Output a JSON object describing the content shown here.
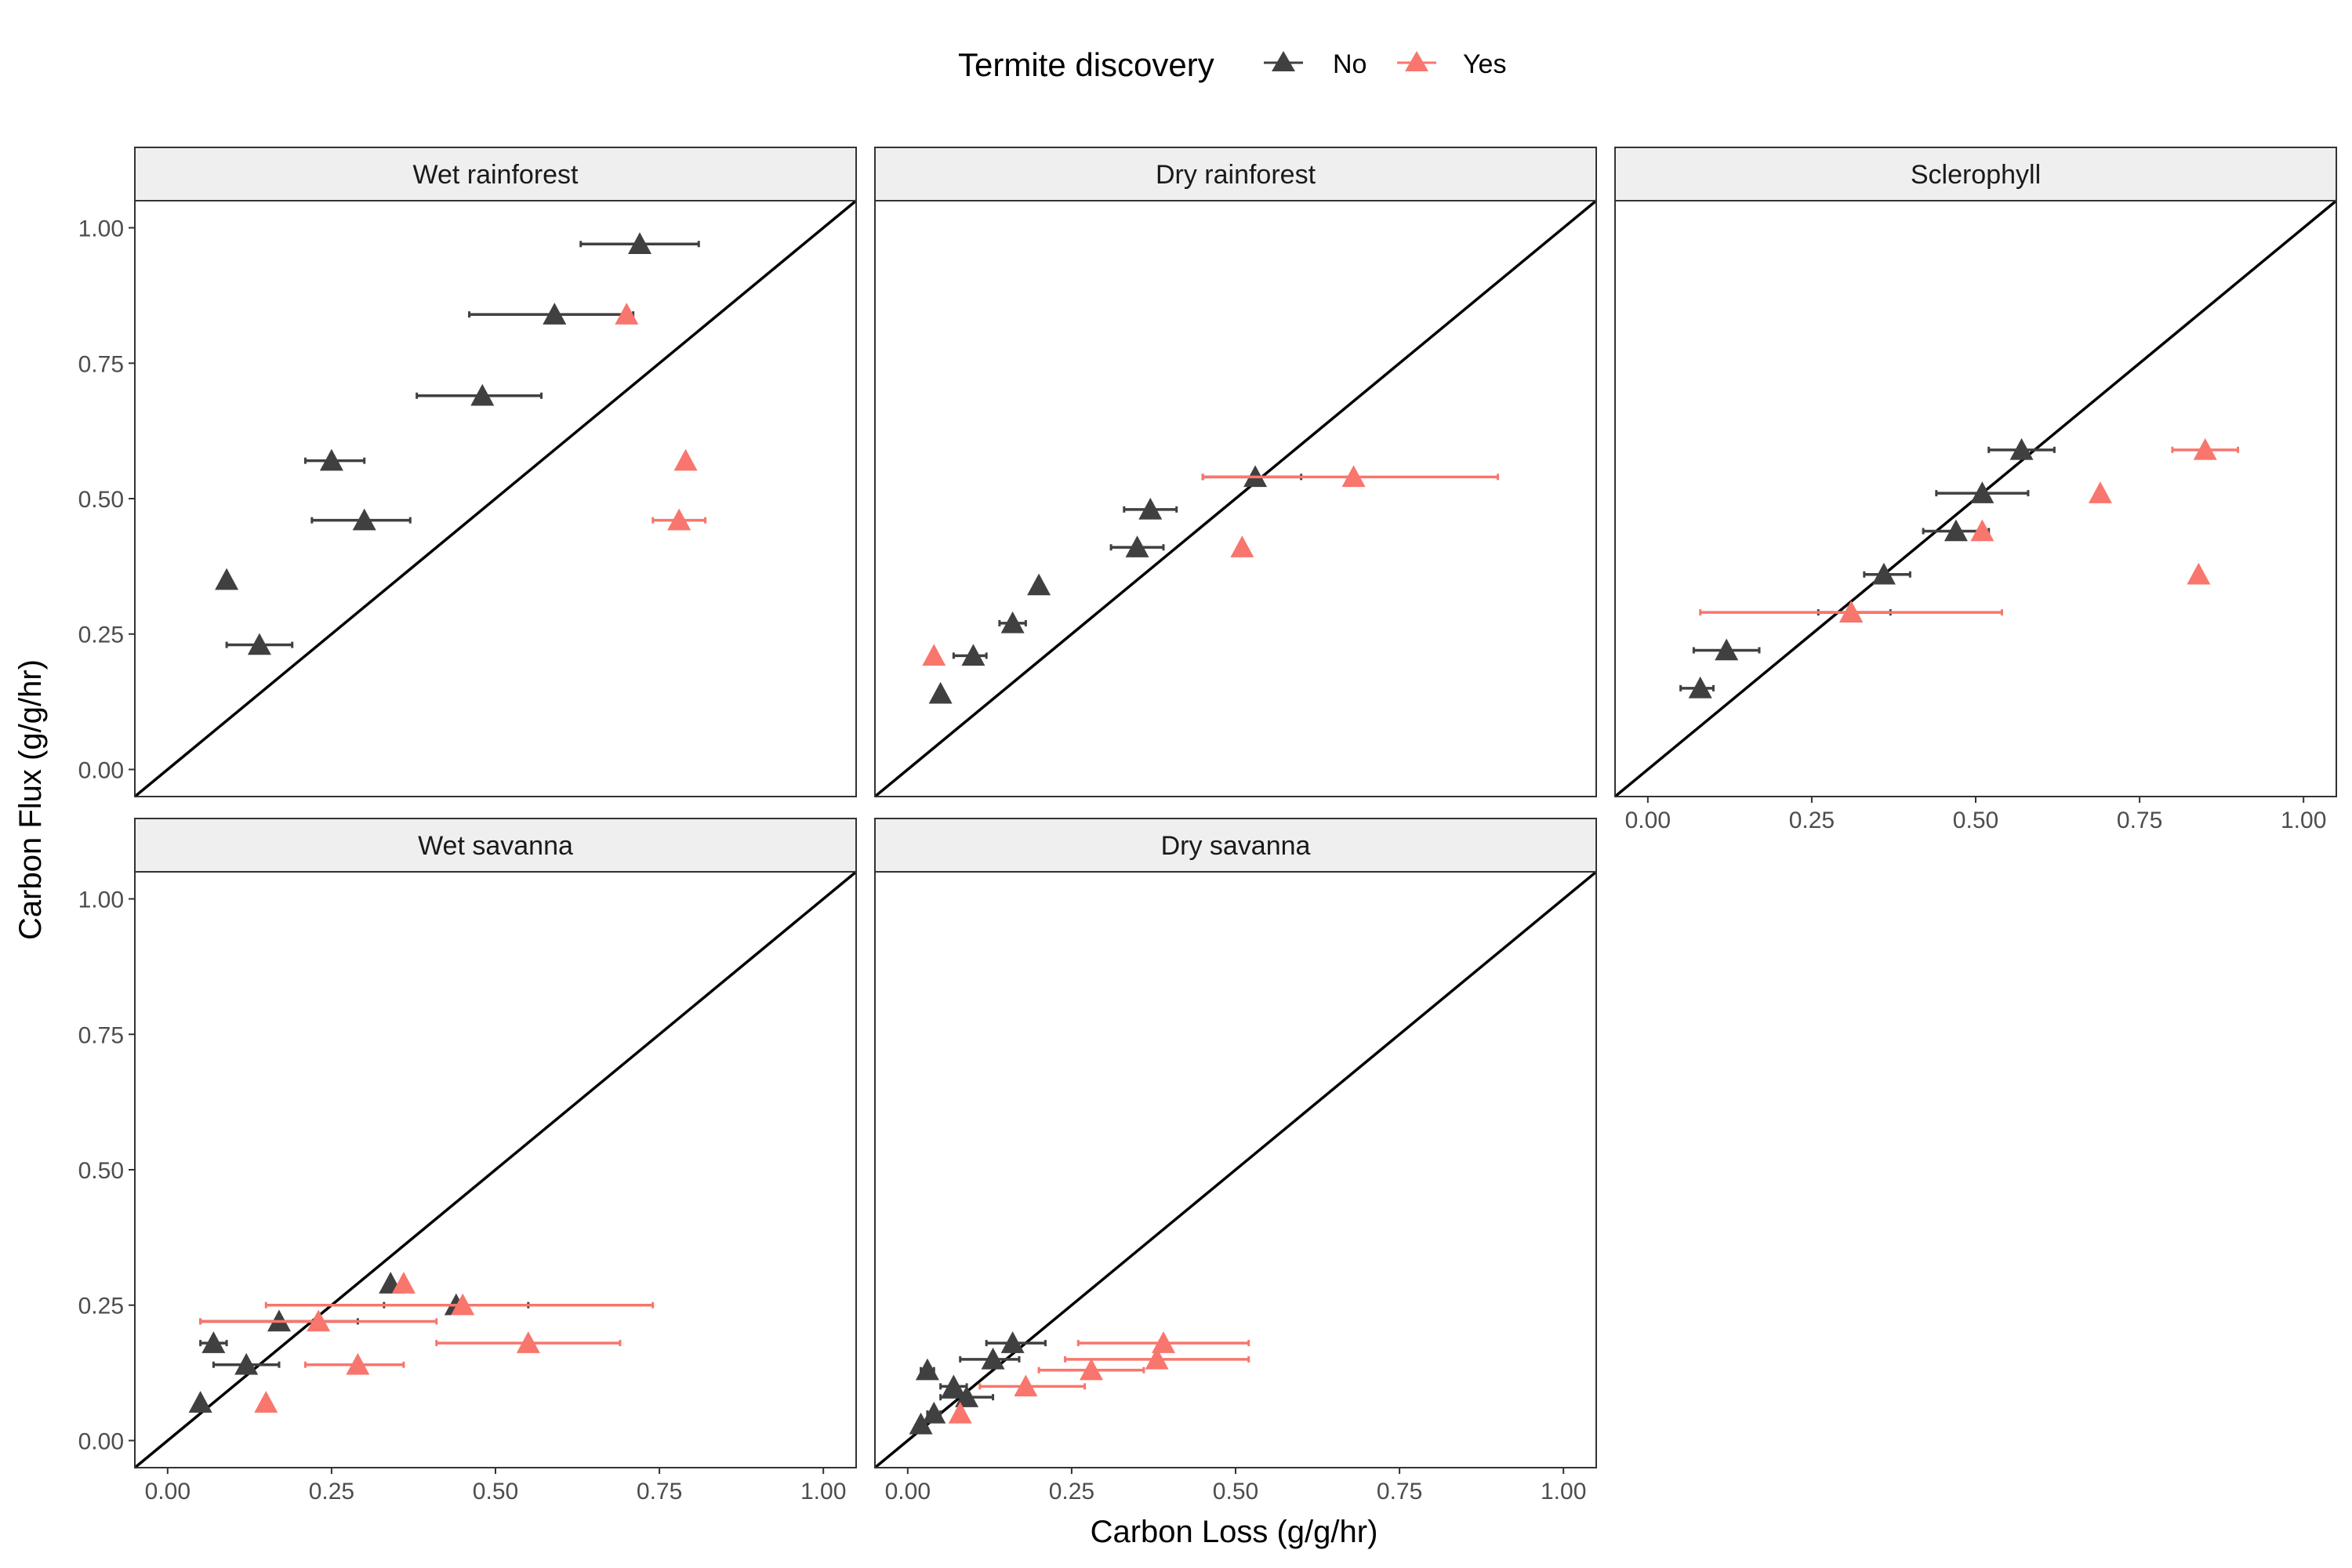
{
  "chart_data": {
    "type": "scatter",
    "xlabel": "Carbon Loss (g/g/hr)",
    "ylabel": "Carbon Flux (g/g/hr)",
    "xlim": [
      -0.05,
      1.05
    ],
    "ylim": [
      -0.05,
      1.05
    ],
    "x_ticks": [
      0,
      0.25,
      0.5,
      0.75,
      1
    ],
    "y_ticks": [
      0,
      0.25,
      0.5,
      0.75,
      1
    ],
    "tick_labels": [
      "0.00",
      "0.25",
      "0.50",
      "0.75",
      "1.00"
    ],
    "reference_line": "y = x",
    "grid": false,
    "legend": {
      "title": "Termite discovery",
      "position": "top",
      "entries": [
        {
          "label": "No",
          "color": "#404040"
        },
        {
          "label": "Yes",
          "color": "#F8766D"
        }
      ]
    },
    "panels": [
      {
        "title": "Wet rainforest",
        "points": [
          {
            "g": "No",
            "x": 0.72,
            "y": 0.97,
            "xmin": 0.63,
            "xmax": 0.81
          },
          {
            "g": "No",
            "x": 0.59,
            "y": 0.84,
            "xmin": 0.46,
            "xmax": 0.71
          },
          {
            "g": "Yes",
            "x": 0.7,
            "y": 0.84
          },
          {
            "g": "No",
            "x": 0.48,
            "y": 0.69,
            "xmin": 0.38,
            "xmax": 0.57
          },
          {
            "g": "No",
            "x": 0.25,
            "y": 0.57,
            "xmin": 0.21,
            "xmax": 0.3
          },
          {
            "g": "Yes",
            "x": 0.79,
            "y": 0.57
          },
          {
            "g": "No",
            "x": 0.3,
            "y": 0.46,
            "xmin": 0.22,
            "xmax": 0.37
          },
          {
            "g": "Yes",
            "x": 0.78,
            "y": 0.46,
            "xmin": 0.74,
            "xmax": 0.82
          },
          {
            "g": "No",
            "x": 0.09,
            "y": 0.35
          },
          {
            "g": "No",
            "x": 0.14,
            "y": 0.23,
            "xmin": 0.09,
            "xmax": 0.19
          }
        ]
      },
      {
        "title": "Dry rainforest",
        "points": [
          {
            "g": "No",
            "x": 0.53,
            "y": 0.54,
            "xmin": 0.45,
            "xmax": 0.6
          },
          {
            "g": "Yes",
            "x": 0.68,
            "y": 0.54,
            "xmin": 0.45,
            "xmax": 0.9
          },
          {
            "g": "No",
            "x": 0.37,
            "y": 0.48,
            "xmin": 0.33,
            "xmax": 0.41
          },
          {
            "g": "No",
            "x": 0.35,
            "y": 0.41,
            "xmin": 0.31,
            "xmax": 0.39
          },
          {
            "g": "Yes",
            "x": 0.51,
            "y": 0.41
          },
          {
            "g": "No",
            "x": 0.2,
            "y": 0.34
          },
          {
            "g": "No",
            "x": 0.16,
            "y": 0.27,
            "xmin": 0.14,
            "xmax": 0.18
          },
          {
            "g": "No",
            "x": 0.1,
            "y": 0.21,
            "xmin": 0.07,
            "xmax": 0.12
          },
          {
            "g": "Yes",
            "x": 0.04,
            "y": 0.21
          },
          {
            "g": "No",
            "x": 0.05,
            "y": 0.14
          }
        ]
      },
      {
        "title": "Sclerophyll",
        "points": [
          {
            "g": "No",
            "x": 0.57,
            "y": 0.59,
            "xmin": 0.52,
            "xmax": 0.62
          },
          {
            "g": "Yes",
            "x": 0.85,
            "y": 0.59,
            "xmin": 0.8,
            "xmax": 0.9
          },
          {
            "g": "No",
            "x": 0.51,
            "y": 0.51,
            "xmin": 0.44,
            "xmax": 0.58
          },
          {
            "g": "Yes",
            "x": 0.69,
            "y": 0.51
          },
          {
            "g": "No",
            "x": 0.47,
            "y": 0.44,
            "xmin": 0.42,
            "xmax": 0.52
          },
          {
            "g": "Yes",
            "x": 0.51,
            "y": 0.44
          },
          {
            "g": "No",
            "x": 0.36,
            "y": 0.36,
            "xmin": 0.33,
            "xmax": 0.4
          },
          {
            "g": "Yes",
            "x": 0.84,
            "y": 0.36
          },
          {
            "g": "No",
            "x": 0.31,
            "y": 0.29,
            "xmin": 0.26,
            "xmax": 0.37
          },
          {
            "g": "Yes",
            "x": 0.31,
            "y": 0.29,
            "xmin": 0.08,
            "xmax": 0.54
          },
          {
            "g": "No",
            "x": 0.12,
            "y": 0.22,
            "xmin": 0.07,
            "xmax": 0.17
          },
          {
            "g": "No",
            "x": 0.08,
            "y": 0.15,
            "xmin": 0.05,
            "xmax": 0.1
          }
        ]
      },
      {
        "title": "Wet savanna",
        "points": [
          {
            "g": "No",
            "x": 0.34,
            "y": 0.29
          },
          {
            "g": "Yes",
            "x": 0.36,
            "y": 0.29
          },
          {
            "g": "No",
            "x": 0.44,
            "y": 0.25,
            "xmin": 0.33,
            "xmax": 0.55
          },
          {
            "g": "Yes",
            "x": 0.45,
            "y": 0.25,
            "xmin": 0.15,
            "xmax": 0.74
          },
          {
            "g": "No",
            "x": 0.17,
            "y": 0.22,
            "xmin": 0.05,
            "xmax": 0.29
          },
          {
            "g": "Yes",
            "x": 0.23,
            "y": 0.22,
            "xmin": 0.05,
            "xmax": 0.41
          },
          {
            "g": "No",
            "x": 0.07,
            "y": 0.18,
            "xmin": 0.05,
            "xmax": 0.09
          },
          {
            "g": "Yes",
            "x": 0.55,
            "y": 0.18,
            "xmin": 0.41,
            "xmax": 0.69
          },
          {
            "g": "No",
            "x": 0.12,
            "y": 0.14,
            "xmin": 0.07,
            "xmax": 0.17
          },
          {
            "g": "Yes",
            "x": 0.29,
            "y": 0.14,
            "xmin": 0.21,
            "xmax": 0.36
          },
          {
            "g": "No",
            "x": 0.05,
            "y": 0.07
          },
          {
            "g": "Yes",
            "x": 0.15,
            "y": 0.07
          }
        ]
      },
      {
        "title": "Dry savanna",
        "points": [
          {
            "g": "No",
            "x": 0.16,
            "y": 0.18,
            "xmin": 0.12,
            "xmax": 0.21
          },
          {
            "g": "Yes",
            "x": 0.39,
            "y": 0.18,
            "xmin": 0.26,
            "xmax": 0.52
          },
          {
            "g": "No",
            "x": 0.13,
            "y": 0.15,
            "xmin": 0.08,
            "xmax": 0.17
          },
          {
            "g": "Yes",
            "x": 0.38,
            "y": 0.15,
            "xmin": 0.24,
            "xmax": 0.52
          },
          {
            "g": "No",
            "x": 0.03,
            "y": 0.13,
            "xmin": 0.02,
            "xmax": 0.04
          },
          {
            "g": "Yes",
            "x": 0.28,
            "y": 0.13,
            "xmin": 0.2,
            "xmax": 0.36
          },
          {
            "g": "No",
            "x": 0.07,
            "y": 0.1,
            "xmin": 0.05,
            "xmax": 0.09
          },
          {
            "g": "Yes",
            "x": 0.18,
            "y": 0.1,
            "xmin": 0.11,
            "xmax": 0.27
          },
          {
            "g": "No",
            "x": 0.09,
            "y": 0.08,
            "xmin": 0.05,
            "xmax": 0.13
          },
          {
            "g": "No",
            "x": 0.04,
            "y": 0.05,
            "xmin": 0.03,
            "xmax": 0.05
          },
          {
            "g": "Yes",
            "x": 0.08,
            "y": 0.05
          },
          {
            "g": "No",
            "x": 0.02,
            "y": 0.03
          }
        ]
      }
    ]
  }
}
